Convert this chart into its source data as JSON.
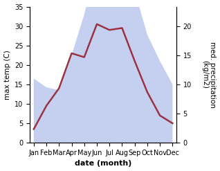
{
  "months": [
    "Jan",
    "Feb",
    "Mar",
    "Apr",
    "May",
    "Jun",
    "Jul",
    "Aug",
    "Sep",
    "Oct",
    "Nov",
    "Dec"
  ],
  "temperature": [
    3.5,
    9.5,
    14.0,
    23.0,
    22.0,
    30.5,
    29.0,
    29.5,
    21.0,
    13.0,
    7.0,
    5.0
  ],
  "precipitation": [
    11.0,
    9.5,
    9.0,
    15.0,
    22.0,
    31.0,
    33.0,
    33.5,
    26.0,
    18.5,
    14.0,
    10.0
  ],
  "temp_color": "#993344",
  "precip_fill_color": "#c5d0f0",
  "precip_edge_color": "#b0bce8",
  "xlabel": "date (month)",
  "ylabel_left": "max temp (C)",
  "ylabel_right": "med. precipitation\n(kg/m2)",
  "ylim_left": [
    0,
    35
  ],
  "ylim_right": [
    0,
    23.33
  ],
  "yticks_left": [
    0,
    5,
    10,
    15,
    20,
    25,
    30,
    35
  ],
  "yticks_right": [
    0,
    5,
    10,
    15,
    20
  ],
  "background_color": "#ffffff"
}
